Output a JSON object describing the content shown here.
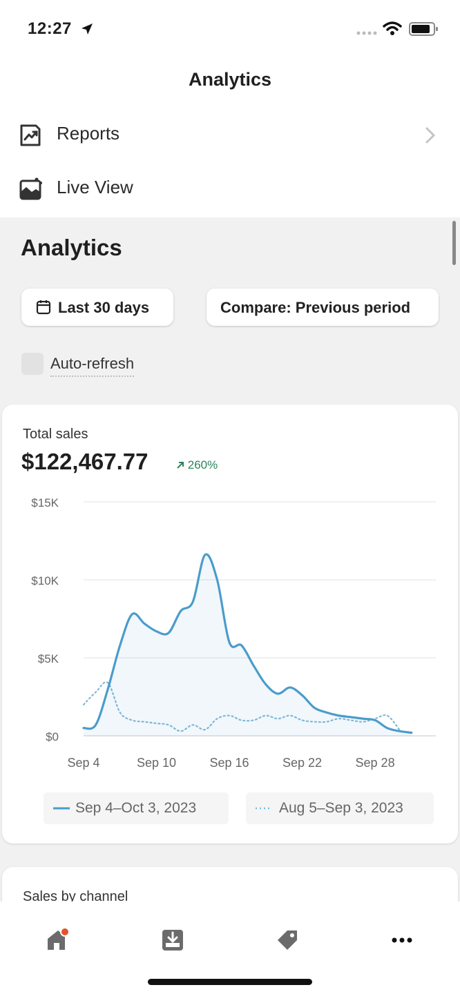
{
  "status_bar": {
    "time": "12:27"
  },
  "nav": {
    "title": "Analytics"
  },
  "menu": {
    "reports": "Reports",
    "live_view": "Live View"
  },
  "page": {
    "heading": "Analytics",
    "date_range": "Last 30 days",
    "compare": "Compare: Previous period",
    "auto_refresh": "Auto-refresh"
  },
  "total_sales": {
    "label": "Total sales",
    "value": "$122,467.77",
    "change": "260%"
  },
  "chart_data": {
    "type": "line",
    "y_ticks": [
      "$15K",
      "$10K",
      "$5K",
      "$0"
    ],
    "ylim": [
      0,
      15000
    ],
    "x_ticks": [
      {
        "label": "Sep 4",
        "day": 0
      },
      {
        "label": "Sep 10",
        "day": 6
      },
      {
        "label": "Sep 16",
        "day": 12
      },
      {
        "label": "Sep 22",
        "day": 18
      },
      {
        "label": "Sep 28",
        "day": 24
      }
    ],
    "series": [
      {
        "name": "Sep 4–Oct 3, 2023",
        "color": "#4a9ccb",
        "style": "solid",
        "values": [
          500,
          700,
          3000,
          5800,
          7800,
          7200,
          6700,
          6600,
          8000,
          8600,
          11600,
          10000,
          6000,
          5800,
          4500,
          3300,
          2700,
          3100,
          2600,
          1800,
          1500,
          1300,
          1200,
          1100,
          1000,
          500,
          300,
          200
        ]
      },
      {
        "name": "Aug 5–Sep 3, 2023",
        "color": "#7fb9d9",
        "style": "dotted",
        "values": [
          2000,
          2800,
          3400,
          1500,
          1000,
          900,
          800,
          700,
          300,
          700,
          400,
          1100,
          1300,
          1000,
          1000,
          1300,
          1100,
          1300,
          1000,
          900,
          900,
          1100,
          1000,
          900,
          1100,
          1300,
          400
        ]
      }
    ]
  },
  "sales_by_channel": {
    "label": "Sales by channel"
  },
  "tabs": {
    "home": "home-icon",
    "orders": "orders-icon",
    "products": "tag-icon",
    "more": "more-icon"
  }
}
